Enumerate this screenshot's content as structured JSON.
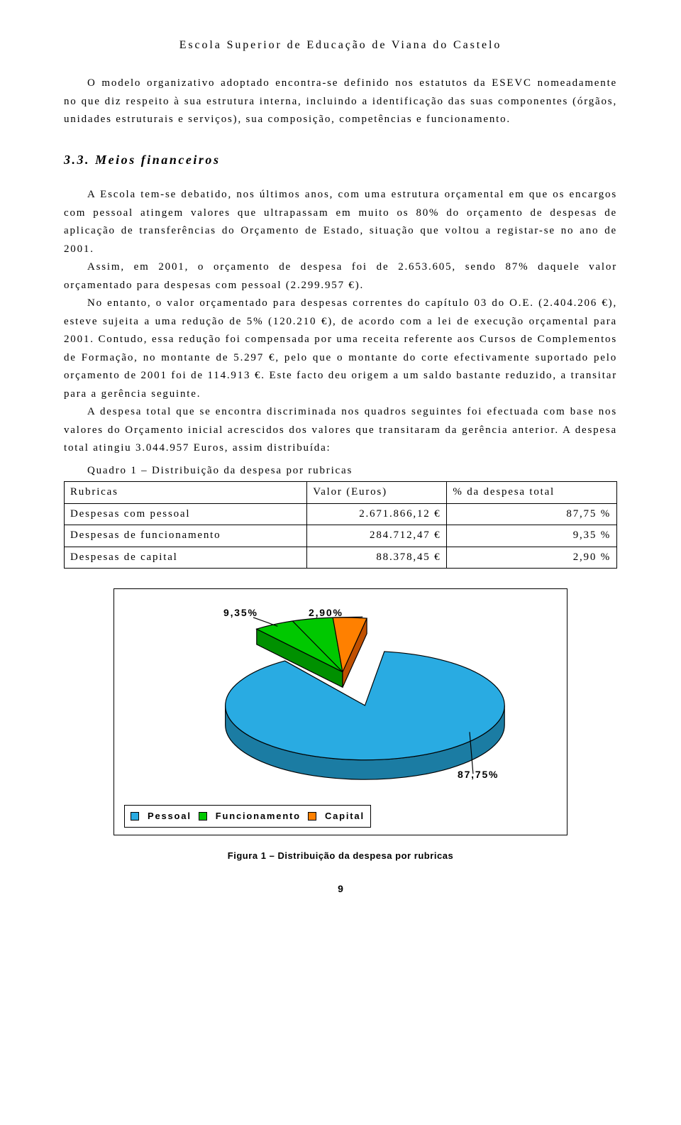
{
  "header": {
    "title": "Escola Superior de Educação de Viana do Castelo"
  },
  "paragraphs": {
    "intro": "O modelo organizativo adoptado encontra-se definido nos estatutos da ESEVC nomeadamente no que diz respeito à sua estrutura interna, incluindo a identificação das suas componentes (órgãos, unidades estruturais e serviços), sua composição, competências e funcionamento.",
    "p2": "A Escola tem-se debatido, nos últimos anos, com uma estrutura orçamental em que os encargos com pessoal atingem valores que ultrapassam em muito os 80% do orçamento de despesas de aplicação de transferências do Orçamento de Estado, situação que voltou a registar-se no ano de 2001.",
    "p3": "Assim, em 2001, o orçamento de despesa foi de 2.653.605, sendo 87% daquele valor orçamentado para despesas com pessoal (2.299.957 €).",
    "p4": "No entanto, o valor orçamentado para despesas correntes do capítulo 03 do O.E. (2.404.206 €), esteve sujeita a uma redução de 5% (120.210 €), de acordo com a lei de execução orçamental para 2001. Contudo, essa redução foi compensada por uma receita referente aos Cursos de Complementos de Formação, no montante de 5.297 €, pelo que o montante do corte efectivamente suportado pelo orçamento de 2001 foi de 114.913 €. Este facto deu origem a um saldo bastante reduzido, a transitar para a gerência seguinte.",
    "p5": "A despesa total que se encontra discriminada nos quadros seguintes foi efectuada com base nos valores do Orçamento inicial acrescidos dos valores que transitaram da gerência anterior. A despesa total atingiu 3.044.957 Euros, assim distribuída:"
  },
  "section": {
    "number": "3.3.",
    "title": "Meios financeiros"
  },
  "table": {
    "caption": "Quadro 1 – Distribuição da despesa por rubricas",
    "columns": [
      "Rubricas",
      "Valor (Euros)",
      "% da despesa total"
    ],
    "rows": [
      [
        "Despesas com pessoal",
        "2.671.866,12 €",
        "87,75 %"
      ],
      [
        "Despesas de funcionamento",
        "284.712,47 €",
        "9,35 %"
      ],
      [
        "Despesas de capital",
        "88.378,45 €",
        "2,90 %"
      ]
    ]
  },
  "chart": {
    "type": "pie-3d",
    "labels": {
      "p1": "9,35%",
      "p2": "2,90%",
      "p3": "87,75%"
    },
    "colors": {
      "pessoal": "#29abe2",
      "pessoal_side": "#1b7ca3",
      "funcionamento": "#00c800",
      "funcionamento_side": "#009000",
      "capital": "#ff8000",
      "capital_side": "#c05000",
      "outline": "#000000"
    },
    "legend": {
      "pessoal": "Pessoal",
      "funcionamento": "Funcionamento",
      "capital": "Capital"
    },
    "caption": "Figura 1 – Distribuição da despesa por rubricas"
  },
  "page_number": "9"
}
